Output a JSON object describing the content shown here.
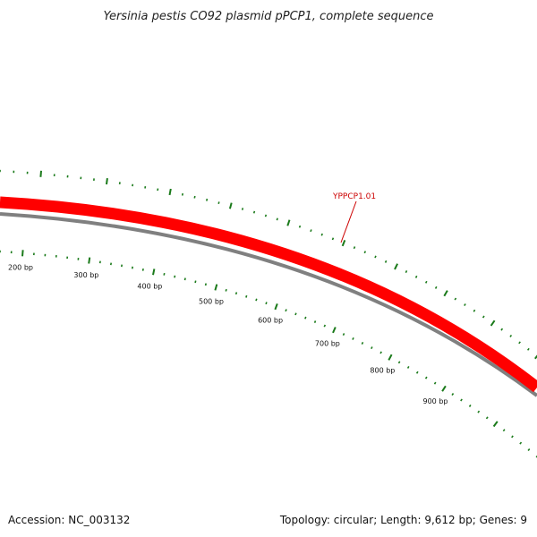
{
  "title": "Yersinia pestis CO92 plasmid pPCP1, complete sequence",
  "accession_text": "Accession: NC_003132",
  "summary_text": "Topology: circular; Length: 9,612 bp; Genes: 9",
  "colors": {
    "gene_forward": "#ff0000",
    "gene_label": "#cc0000",
    "backbone": "#808080",
    "tick": "#1a7a1a"
  },
  "map": {
    "genes": [
      {
        "label": "YPPCP1.01",
        "strand": "forward"
      }
    ],
    "scale_labels": [
      "200 bp",
      "300 bp",
      "400 bp",
      "500 bp",
      "600 bp",
      "700 bp",
      "800 bp",
      "900 bp"
    ]
  }
}
